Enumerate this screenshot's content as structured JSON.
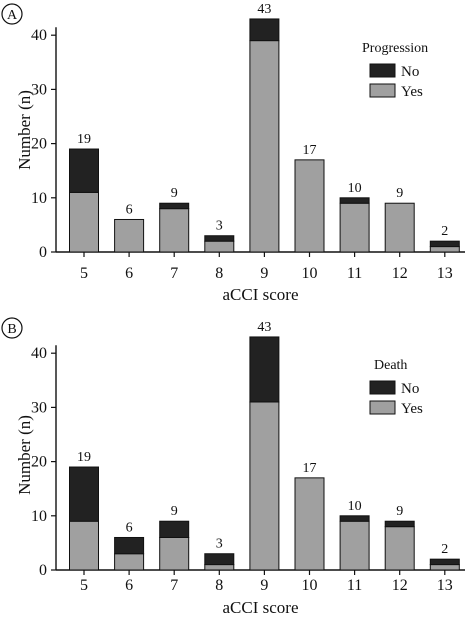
{
  "chart_data": [
    {
      "type": "bar",
      "stacked": true,
      "panel_label": "A",
      "categories": [
        "5",
        "6",
        "7",
        "8",
        "9",
        "10",
        "11",
        "12",
        "13"
      ],
      "totals": [
        19,
        6,
        9,
        3,
        43,
        17,
        10,
        9,
        2
      ],
      "series": [
        {
          "name": "No",
          "color": "#222222",
          "values": [
            8,
            0,
            1,
            1,
            4,
            0,
            1,
            0,
            1
          ]
        },
        {
          "name": "Yes",
          "color": "#a0a0a0",
          "values": [
            11,
            6,
            8,
            2,
            39,
            17,
            9,
            9,
            1
          ]
        }
      ],
      "legend_title": "Progression",
      "legend_position": "top-right",
      "xlabel": "aCCI score",
      "ylabel": "Number (n)",
      "ylim": [
        0,
        40
      ],
      "yticks": [
        "0",
        "10",
        "20",
        "30",
        "40"
      ],
      "grid": false
    },
    {
      "type": "bar",
      "stacked": true,
      "panel_label": "B",
      "categories": [
        "5",
        "6",
        "7",
        "8",
        "9",
        "10",
        "11",
        "12",
        "13"
      ],
      "totals": [
        19,
        6,
        9,
        3,
        43,
        17,
        10,
        9,
        2
      ],
      "series": [
        {
          "name": "No",
          "color": "#222222",
          "values": [
            10,
            3,
            3,
            2,
            12,
            0,
            1,
            1,
            1
          ]
        },
        {
          "name": "Yes",
          "color": "#a0a0a0",
          "values": [
            9,
            3,
            6,
            1,
            31,
            17,
            9,
            8,
            1
          ]
        }
      ],
      "legend_title": "Death",
      "legend_position": "top-right",
      "xlabel": "aCCI score",
      "ylabel": "Number (n)",
      "ylim": [
        0,
        40
      ],
      "yticks": [
        "0",
        "10",
        "20",
        "30",
        "40"
      ],
      "grid": false
    }
  ]
}
